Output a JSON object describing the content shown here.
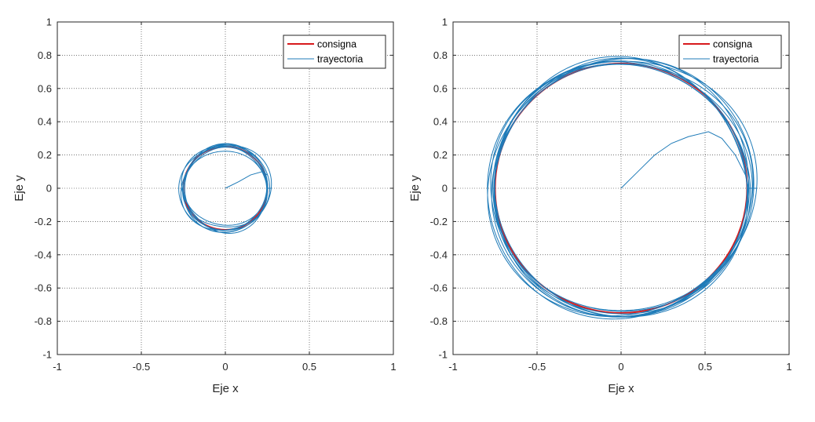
{
  "chart_data": [
    {
      "type": "line",
      "xlabel": "Eje x",
      "ylabel": "Eje y",
      "xlim": [
        -1,
        1
      ],
      "ylim": [
        -1,
        1
      ],
      "xticks": [
        -1,
        -0.5,
        0,
        0.5,
        1
      ],
      "xtick_labels": [
        "-1",
        "-0.5",
        "0",
        "0.5",
        "1"
      ],
      "yticks": [
        -1,
        -0.8,
        -0.6,
        -0.4,
        -0.2,
        0,
        0.2,
        0.4,
        0.6,
        0.8,
        1
      ],
      "ytick_labels": [
        "-1",
        "-0.8",
        "-0.6",
        "-0.4",
        "-0.2",
        "0",
        "0.2",
        "0.4",
        "0.6",
        "0.8",
        "1"
      ],
      "grid": true,
      "legend_position": "top-right",
      "series": [
        {
          "name": "consigna",
          "color": "#d7191c",
          "kind": "circle",
          "radius": 0.25,
          "center": [
            0,
            0
          ]
        },
        {
          "name": "trayectoria",
          "color": "#1f7bb8",
          "kind": "path",
          "transient": [
            [
              0,
              0
            ],
            [
              0.08,
              0.04
            ],
            [
              0.15,
              0.08
            ],
            [
              0.22,
              0.1
            ],
            [
              0.25,
              0.08
            ]
          ],
          "orbit_radius_range": [
            0.235,
            0.27
          ],
          "loops": 8
        }
      ]
    },
    {
      "type": "line",
      "xlabel": "Eje x",
      "ylabel": "Eje y",
      "xlim": [
        -1,
        1
      ],
      "ylim": [
        -1,
        1
      ],
      "xticks": [
        -1,
        -0.5,
        0,
        0.5,
        1
      ],
      "xtick_labels": [
        "-1",
        "-0.5",
        "0",
        "0.5",
        "1"
      ],
      "yticks": [
        -1,
        -0.8,
        -0.6,
        -0.4,
        -0.2,
        0,
        0.2,
        0.4,
        0.6,
        0.8,
        1
      ],
      "ytick_labels": [
        "-1",
        "-0.8",
        "-0.6",
        "-0.4",
        "-0.2",
        "0",
        "0.2",
        "0.4",
        "0.6",
        "0.8",
        "1"
      ],
      "grid": true,
      "legend_position": "top-right",
      "series": [
        {
          "name": "consigna",
          "color": "#d7191c",
          "kind": "circle",
          "radius": 0.75,
          "center": [
            0,
            0
          ]
        },
        {
          "name": "trayectoria",
          "color": "#1f7bb8",
          "kind": "path",
          "transient": [
            [
              0,
              0
            ],
            [
              0.1,
              0.1
            ],
            [
              0.2,
              0.2
            ],
            [
              0.3,
              0.27
            ],
            [
              0.4,
              0.31
            ],
            [
              0.52,
              0.34
            ],
            [
              0.6,
              0.3
            ],
            [
              0.68,
              0.2
            ],
            [
              0.74,
              0.08
            ],
            [
              0.76,
              0
            ]
          ],
          "orbit_radius_range": [
            0.74,
            0.8
          ],
          "loops": 10
        }
      ]
    }
  ]
}
